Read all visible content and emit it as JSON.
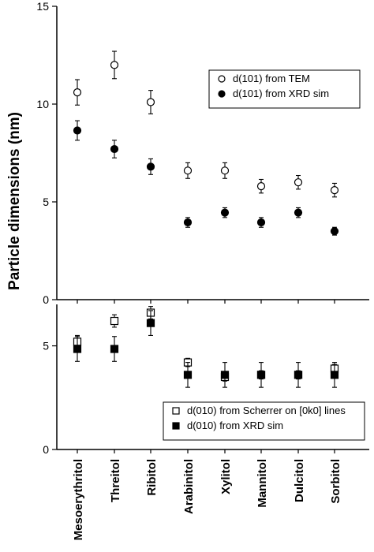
{
  "chart_data": [
    {
      "type": "scatter",
      "ylabel": "Particle dimensions (nm)",
      "ylim": [
        0,
        15
      ],
      "yticks": [
        "0",
        "5",
        "10",
        "15"
      ],
      "categories": [
        "Mesoerythritol",
        "Threitol",
        "Ribitol",
        "Arabinitol",
        "Xylitol",
        "Mannitol",
        "Dulcitol",
        "Sorbitol"
      ],
      "legend_position": "upper-right",
      "series": [
        {
          "name": "d(101) from TEM",
          "marker": "open-circle",
          "values": [
            10.6,
            12.0,
            10.1,
            6.6,
            6.6,
            5.8,
            6.0,
            5.6
          ],
          "errors": [
            0.65,
            0.7,
            0.6,
            0.4,
            0.4,
            0.35,
            0.35,
            0.35
          ]
        },
        {
          "name": "d(101) from XRD sim",
          "marker": "filled-circle",
          "values": [
            8.65,
            7.7,
            6.8,
            3.95,
            4.45,
            3.95,
            4.45,
            3.5
          ],
          "errors": [
            0.5,
            0.45,
            0.4,
            0.25,
            0.25,
            0.25,
            0.25,
            0.2
          ]
        }
      ]
    },
    {
      "type": "scatter",
      "ylim": [
        0,
        7
      ],
      "yticks": [
        "0",
        "5"
      ],
      "categories": [
        "Mesoerythritol",
        "Threitol",
        "Ribitol",
        "Arabinitol",
        "Xylitol",
        "Mannitol",
        "Dulcitol",
        "Sorbitol"
      ],
      "legend_position": "lower-right",
      "series": [
        {
          "name": "d(010) from Scherrer on [0k0] lines",
          "marker": "open-square",
          "values": [
            5.2,
            6.2,
            6.6,
            4.2,
            3.5,
            3.6,
            3.6,
            3.9
          ],
          "errors": [
            0.3,
            0.3,
            0.3,
            0.2,
            0.2,
            0.2,
            0.2,
            0.2
          ]
        },
        {
          "name": "d(010) from XRD sim",
          "marker": "filled-square",
          "values": [
            4.85,
            4.85,
            6.1,
            3.6,
            3.6,
            3.6,
            3.6,
            3.6
          ],
          "errors": [
            0.6,
            0.6,
            0.6,
            0.6,
            0.6,
            0.6,
            0.6,
            0.6
          ]
        }
      ]
    }
  ]
}
